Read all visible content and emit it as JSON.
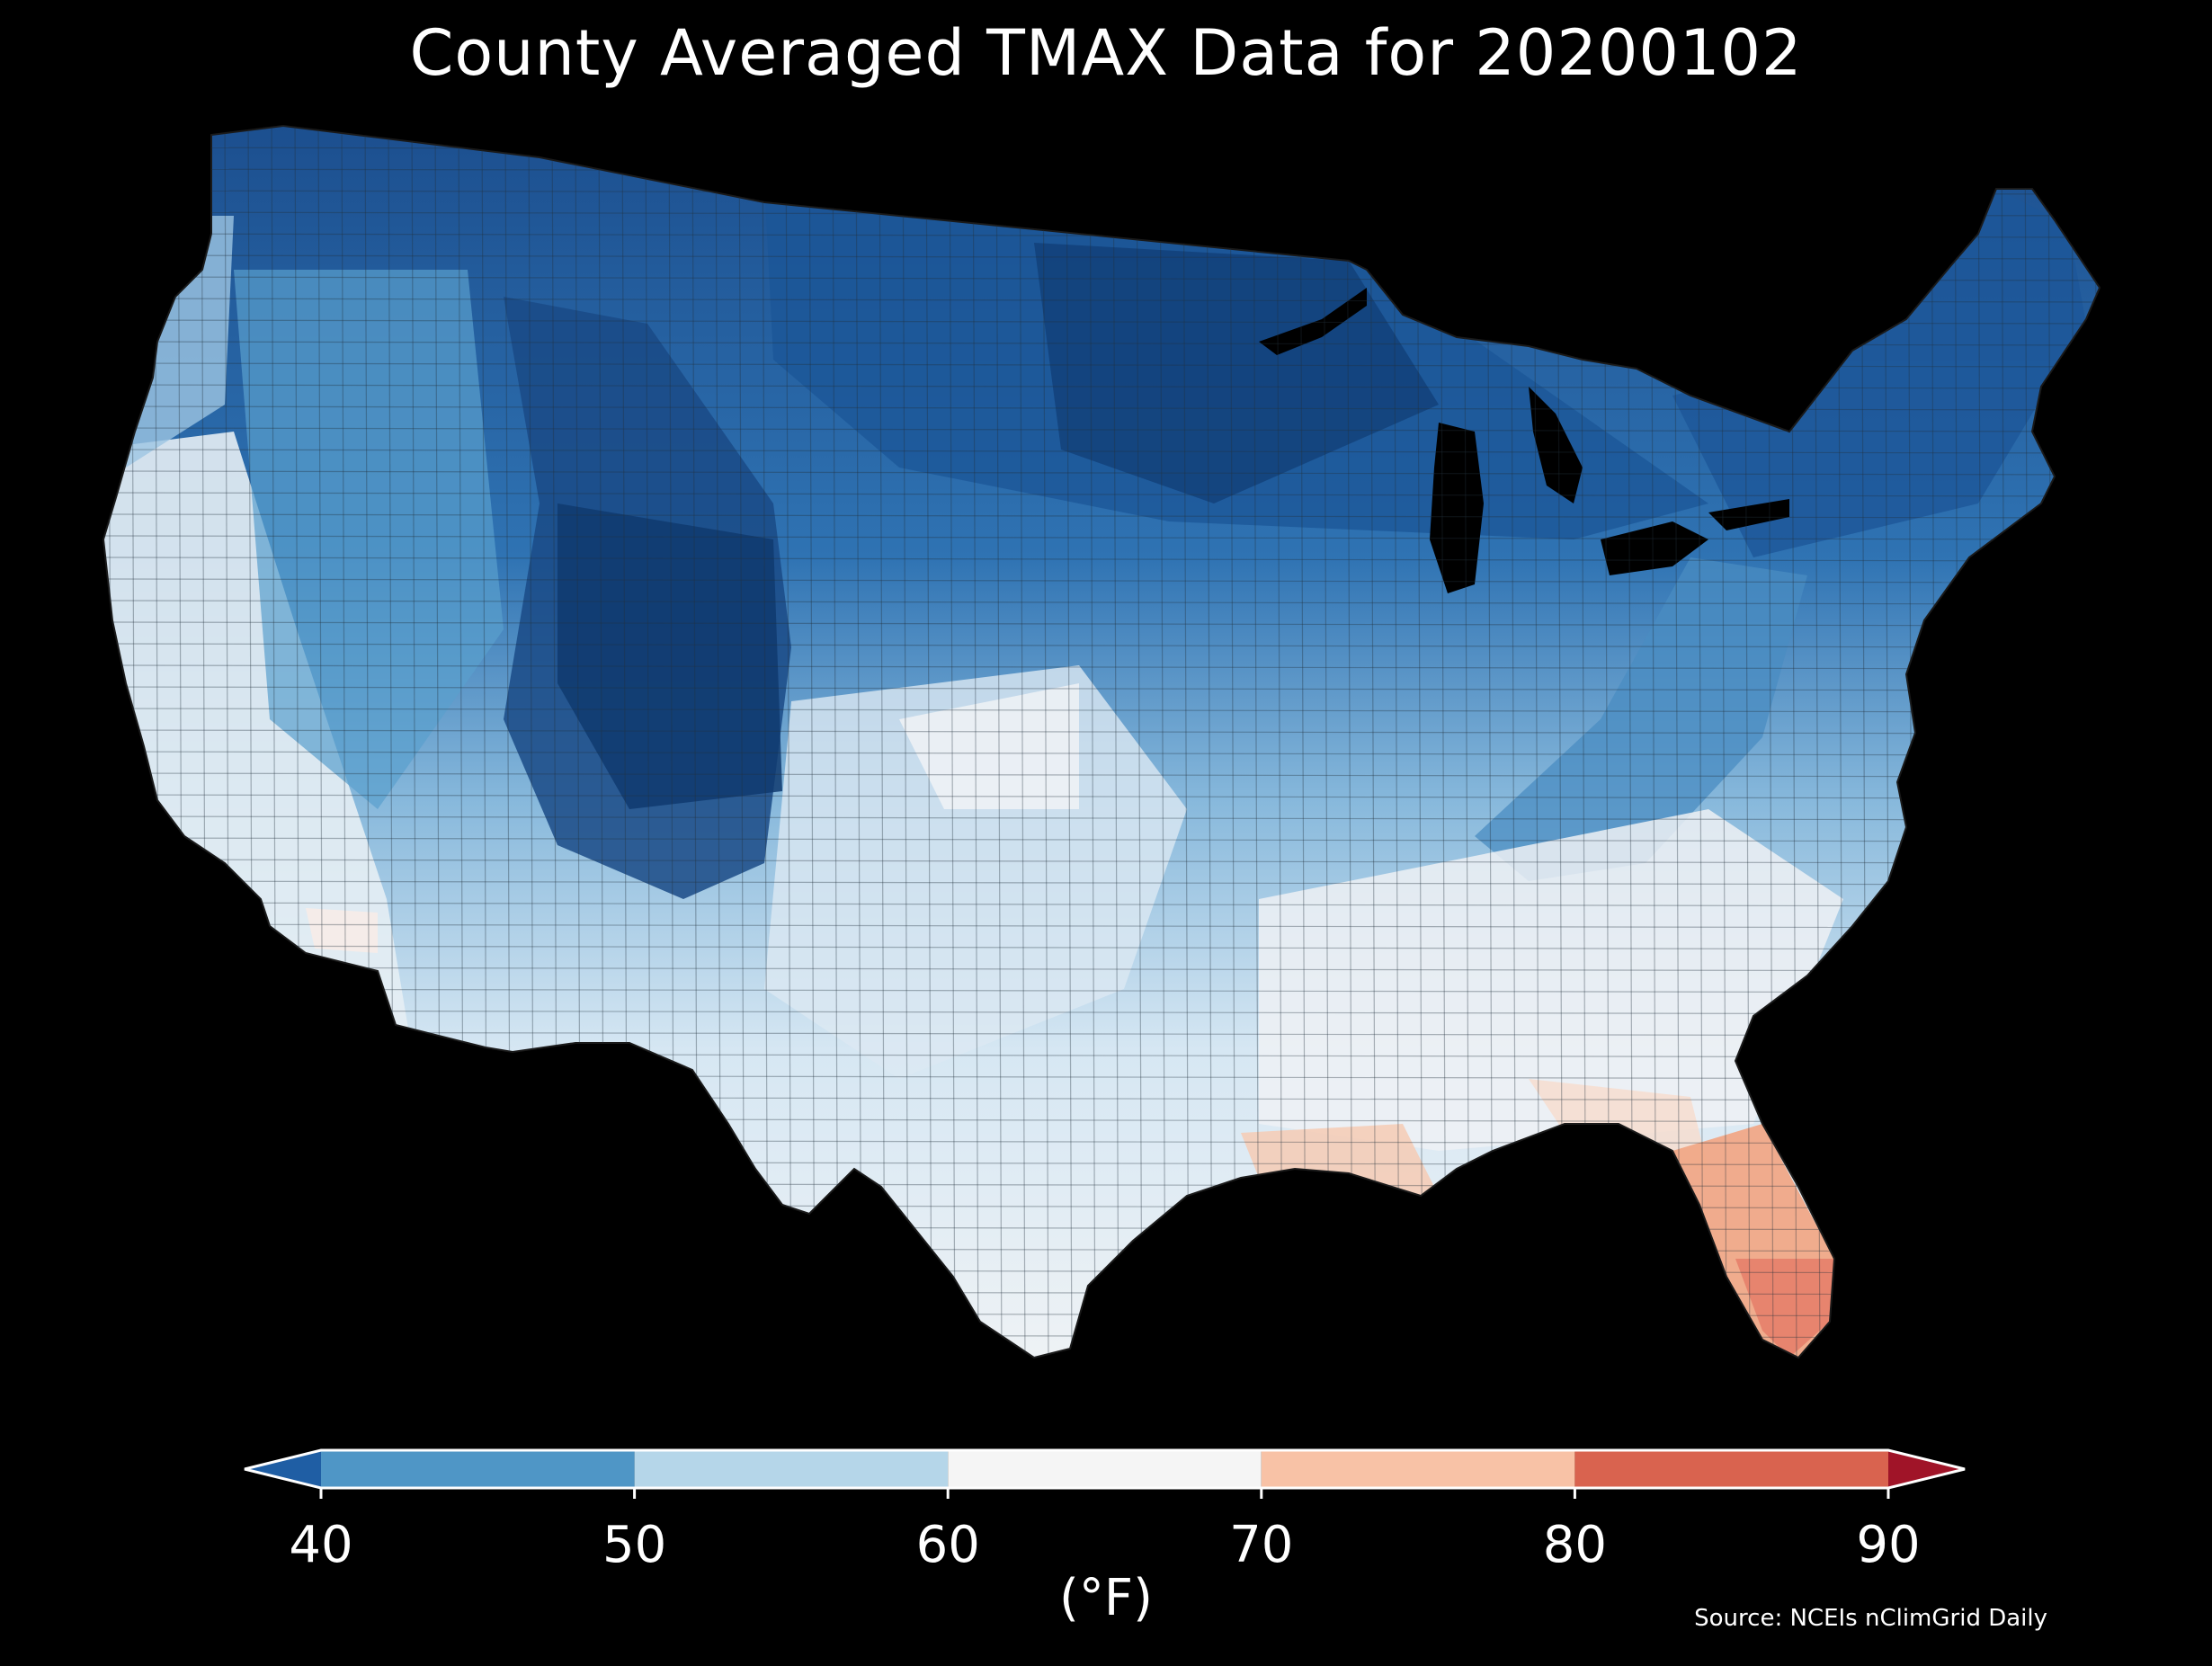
{
  "title": "County Averaged TMAX Data for 20200102",
  "source": "Source: NCEIs nClimGrid Daily",
  "colorbar": {
    "unit_label": "(°F)",
    "ticks": [
      "40",
      "50",
      "60",
      "70",
      "80",
      "90"
    ],
    "bins": [
      {
        "range": "<40",
        "color": "#1f5ea4"
      },
      {
        "range": "40-50",
        "color": "#4f96c6"
      },
      {
        "range": "50-60",
        "color": "#b5d6e9"
      },
      {
        "range": "60-70",
        "color": "#f5f5f5"
      },
      {
        "range": "70-80",
        "color": "#f8c2a6"
      },
      {
        "range": "80-90",
        "color": "#d9634f"
      },
      {
        "range": ">90",
        "color": "#a01428"
      }
    ]
  },
  "map": {
    "region": "Contiguous United States",
    "units": "counties",
    "variable": "TMAX"
  }
}
